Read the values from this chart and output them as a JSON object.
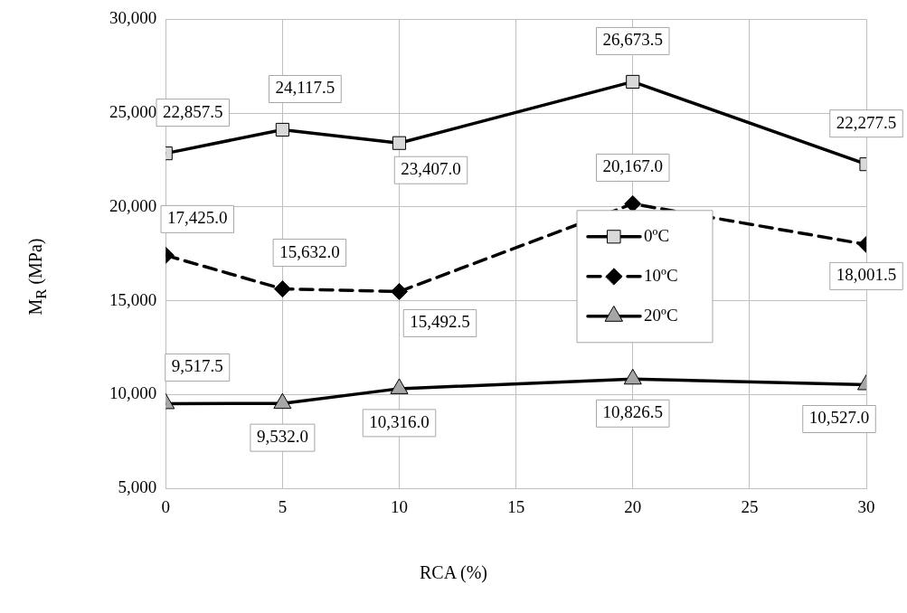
{
  "chart_data": {
    "type": "line",
    "xlabel": "RCA (%)",
    "ylabel": "M$_{R}$ (MPa)",
    "x": [
      0,
      5,
      10,
      20,
      30
    ],
    "series": [
      {
        "name": "0ºC",
        "color": "#d9d9d9",
        "marker": "square",
        "line_style": "solid",
        "values": [
          22857.5,
          24117.5,
          23407.0,
          26673.5,
          22277.5
        ],
        "value_labels": [
          "22,857.5",
          "24,117.5",
          "23,407.0",
          "26,673.5",
          "22,277.5"
        ]
      },
      {
        "name": "10ºC",
        "color": "#000000",
        "marker": "diamond",
        "line_style": "dashed",
        "values": [
          17425.0,
          15632.0,
          15492.5,
          20167.0,
          18001.5
        ],
        "value_labels": [
          "17,425.0",
          "15,632.0",
          "15,492.5",
          "20,167.0",
          "18,001.5"
        ]
      },
      {
        "name": "20ºC",
        "color": "#a6a6a6",
        "marker": "triangle",
        "line_style": "solid",
        "values": [
          9517.5,
          9532.0,
          10316.0,
          10826.5,
          10527.0
        ],
        "value_labels": [
          "9,517.5",
          "9,532.0",
          "10,316.0",
          "10,826.5",
          "10,527.0"
        ]
      }
    ],
    "xlim": [
      0,
      30
    ],
    "xticks": [
      0,
      5,
      10,
      15,
      20,
      25,
      30
    ],
    "ylim": [
      5000,
      30000
    ],
    "yticks": [
      {
        "value": 5000,
        "label": "5,000"
      },
      {
        "value": 10000,
        "label": "10,000"
      },
      {
        "value": 15000,
        "label": "15,000"
      },
      {
        "value": 20000,
        "label": "20,000"
      },
      {
        "value": 25000,
        "label": "25,000"
      },
      {
        "value": 30000,
        "label": "30,000"
      }
    ],
    "grid": true,
    "legend": "right"
  }
}
